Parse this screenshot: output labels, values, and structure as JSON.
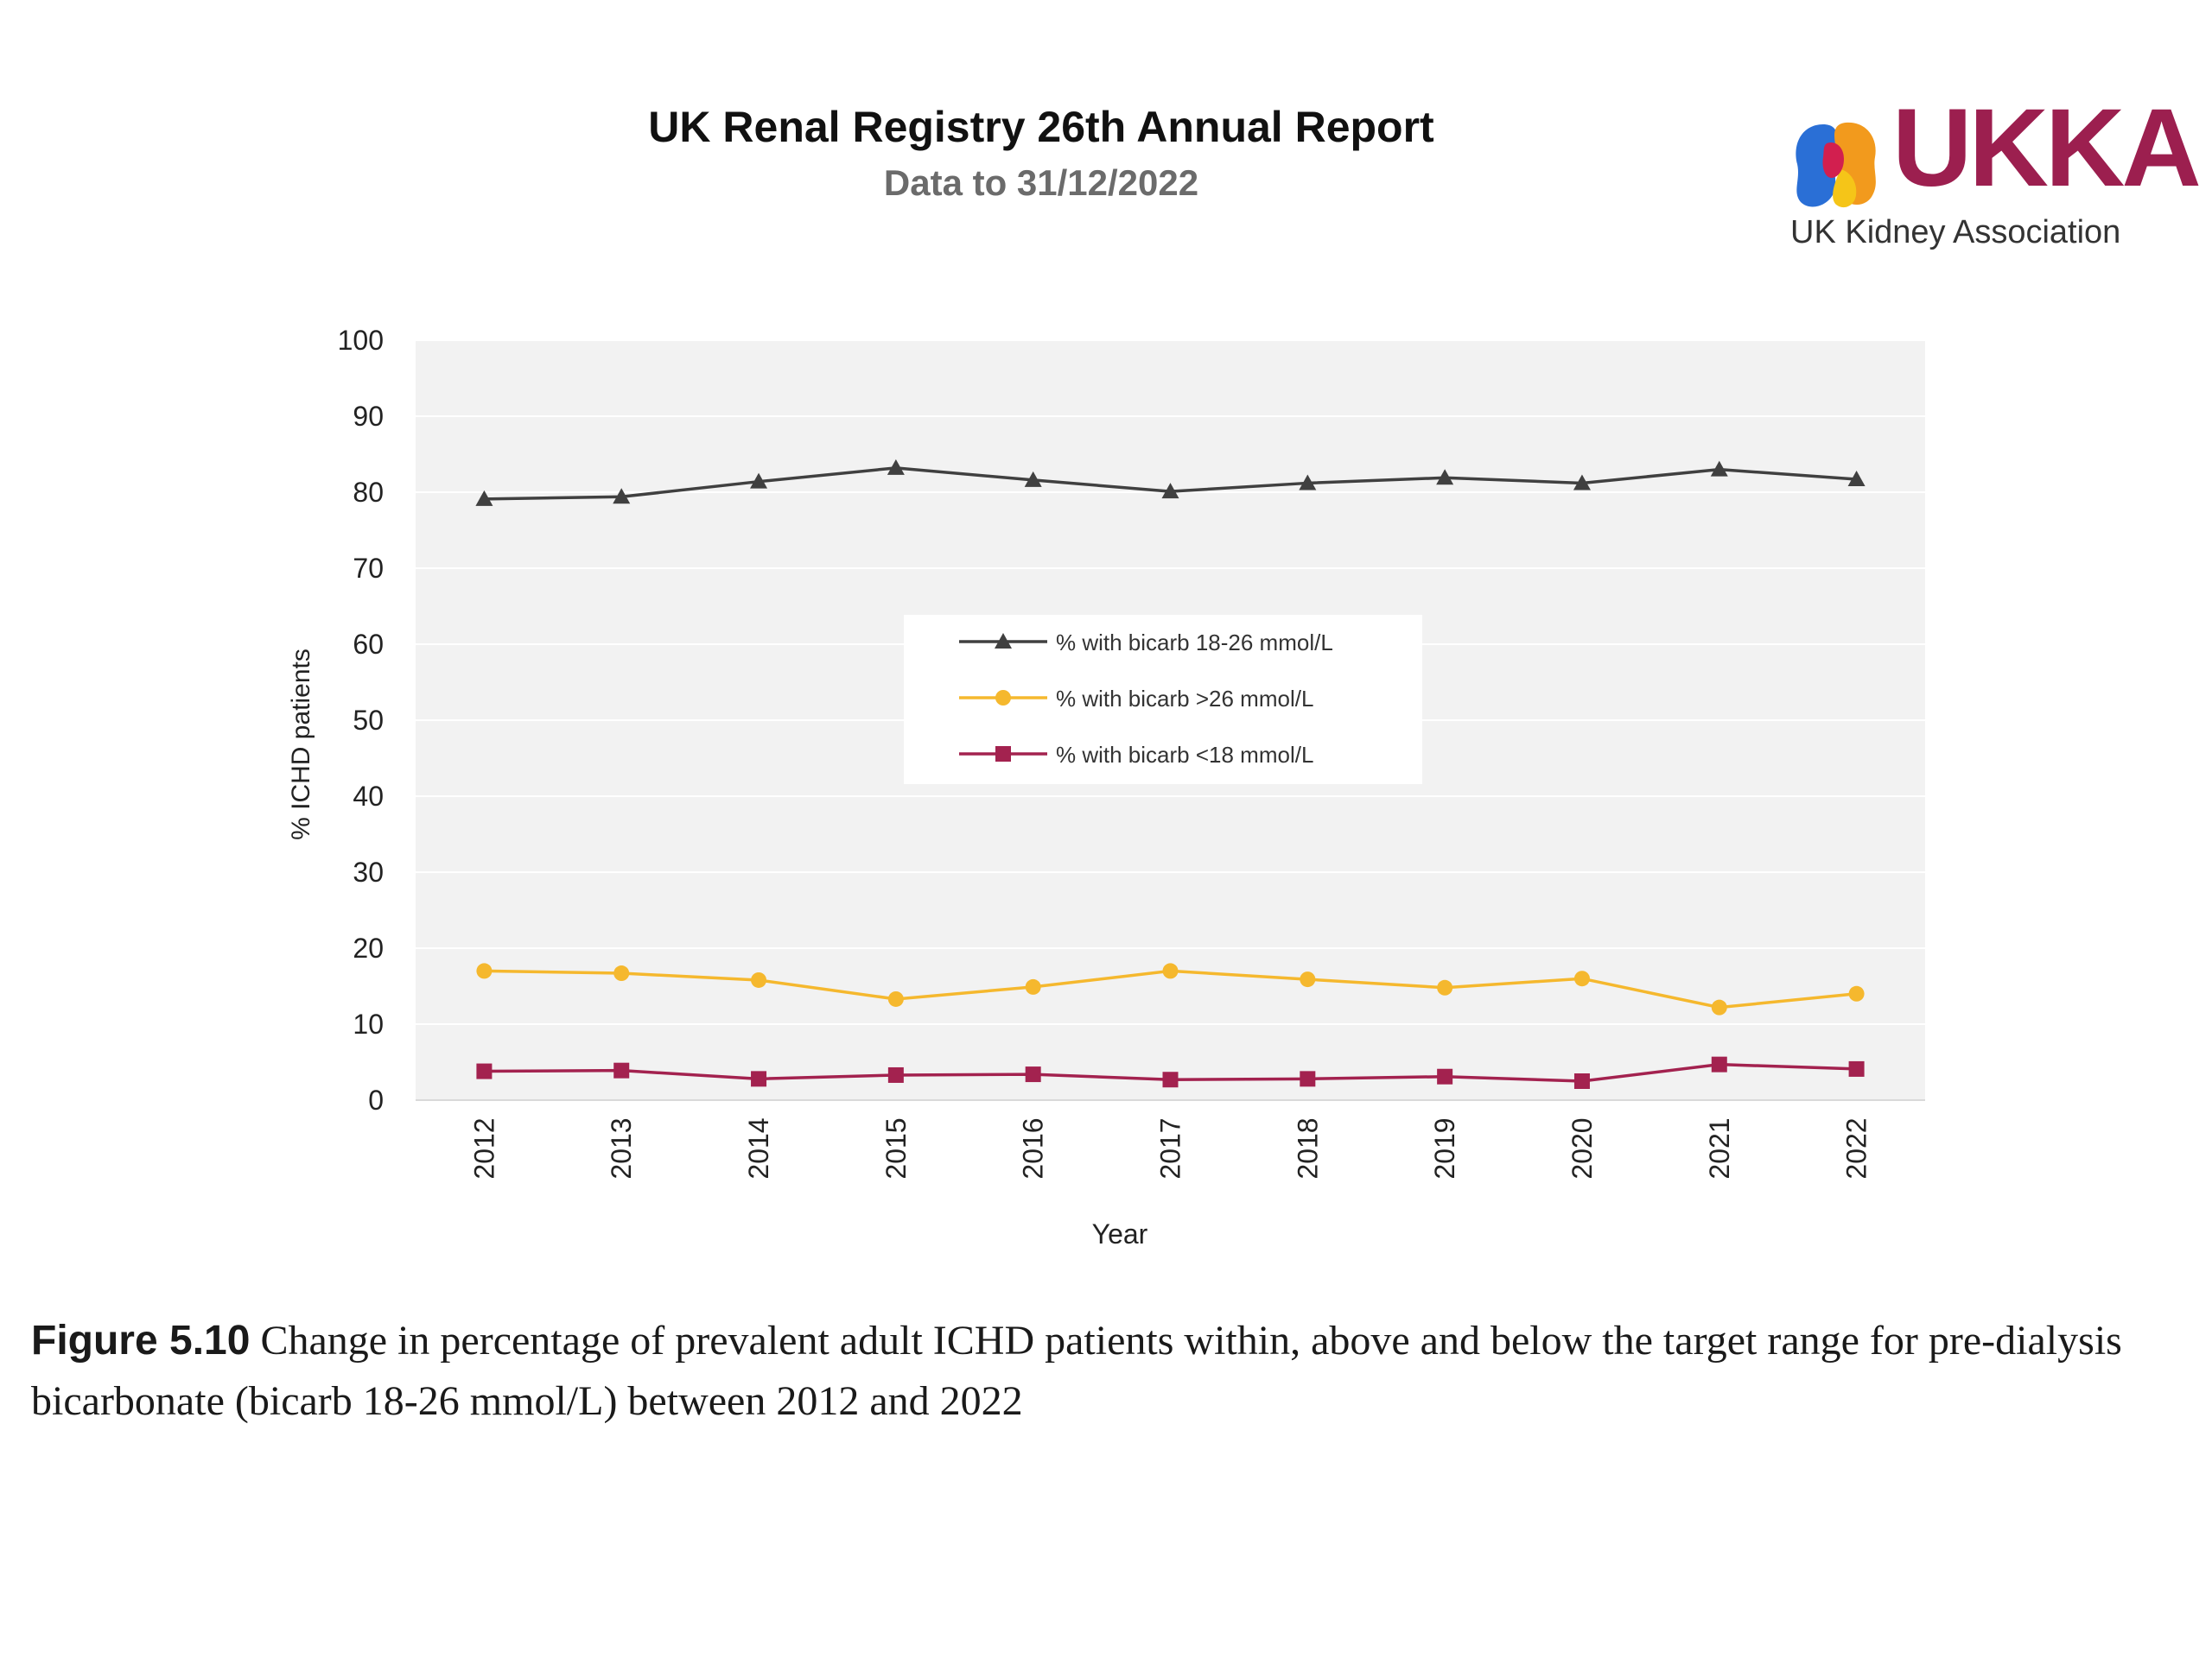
{
  "header": {
    "title": "UK Renal Registry 26th Annual Report",
    "subtitle": "Data to 31/12/2022"
  },
  "logo": {
    "wordmark": "UKKA",
    "name": "UK Kidney Association",
    "colors": {
      "blue": "#2a6fd6",
      "orange": "#f29a1d",
      "yellow": "#f5c518",
      "red": "#d21f4f",
      "wordmark": "#9c1f4f"
    }
  },
  "chart_data": {
    "type": "line",
    "xlabel": "Year",
    "ylabel": "% ICHD patients",
    "ylim": [
      0,
      100
    ],
    "yticks": [
      0,
      10,
      20,
      30,
      40,
      50,
      60,
      70,
      80,
      90,
      100
    ],
    "categories": [
      "2012",
      "2013",
      "2014",
      "2015",
      "2016",
      "2017",
      "2018",
      "2019",
      "2020",
      "2021",
      "2022"
    ],
    "grid": true,
    "plot_background": "#f2f2f2",
    "legend_position": "center",
    "series": [
      {
        "name": "% with bicarb 18-26 mmol/L",
        "color": "#404040",
        "marker": "triangle",
        "values": [
          79.1,
          79.4,
          81.4,
          83.2,
          81.6,
          80.1,
          81.2,
          81.9,
          81.2,
          83.0,
          81.7
        ]
      },
      {
        "name": "% with bicarb >26 mmol/L",
        "color": "#f5b82e",
        "marker": "circle",
        "values": [
          17.0,
          16.7,
          15.8,
          13.3,
          14.9,
          17.0,
          15.9,
          14.8,
          16.0,
          12.2,
          14.0
        ]
      },
      {
        "name": "% with bicarb <18 mmol/L",
        "color": "#a3224f",
        "marker": "square",
        "values": [
          3.8,
          3.9,
          2.8,
          3.3,
          3.4,
          2.7,
          2.8,
          3.1,
          2.5,
          4.7,
          4.1
        ]
      }
    ]
  },
  "caption": {
    "label": "Figure 5.10",
    "text": " Change in percentage of prevalent adult ICHD patients within, above and below the target range for pre-dialysis bicarbonate (bicarb 18-26 mmol/L) between 2012 and 2022"
  }
}
